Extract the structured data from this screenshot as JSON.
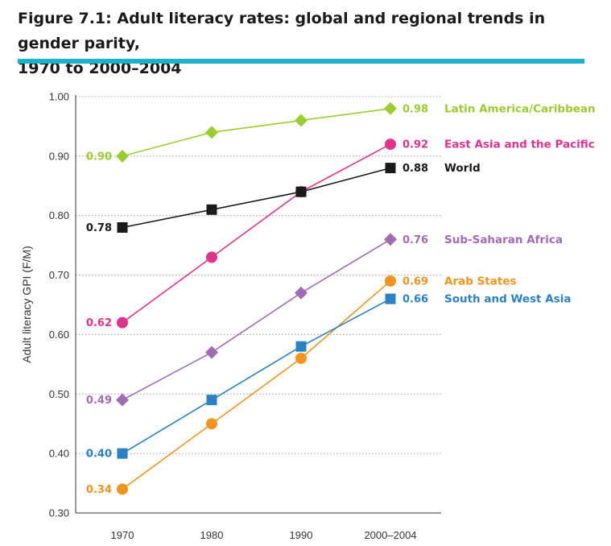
{
  "title_line1": "Figure 7.1: Adult literacy rates: global and regional trends in gender parity,",
  "title_line2": "1970 to 2000–2004",
  "chart_data": {
    "type": "line",
    "title": "Figure 7.1: Adult literacy rates: global and regional trends in gender parity, 1970 to 2000–2004",
    "xlabel": "",
    "ylabel": "Adult literacy GPI (F/M)",
    "categories": [
      "1970",
      "1980",
      "1990",
      "2000–2004"
    ],
    "ylim": [
      0.3,
      1.0
    ],
    "yticks": [
      "0.30",
      "0.40",
      "0.50",
      "0.60",
      "0.70",
      "0.80",
      "0.90",
      "1.00"
    ],
    "grid": "horizontal dotted",
    "series": [
      {
        "name": "Latin America/Caribbean",
        "color": "#9acd32",
        "marker": "diamond",
        "values": [
          0.9,
          0.94,
          0.96,
          0.98
        ],
        "start_label": "0.90",
        "end_label": "0.98"
      },
      {
        "name": "East Asia and the Pacific",
        "color": "#e0338e",
        "marker": "circle",
        "values": [
          0.62,
          0.73,
          0.84,
          0.92
        ],
        "start_label": "0.62",
        "end_label": "0.92"
      },
      {
        "name": "World",
        "color": "#1a1a1a",
        "marker": "square",
        "values": [
          0.78,
          0.81,
          0.84,
          0.88
        ],
        "start_label": "0.78",
        "end_label": "0.88"
      },
      {
        "name": "Sub-Saharan Africa",
        "color": "#a36bb4",
        "marker": "diamond",
        "values": [
          0.49,
          0.57,
          0.67,
          0.76
        ],
        "start_label": "0.49",
        "end_label": "0.76"
      },
      {
        "name": "Arab States",
        "color": "#f39420",
        "marker": "circle",
        "values": [
          0.34,
          0.45,
          0.56,
          0.69
        ],
        "start_label": "0.34",
        "end_label": "0.69"
      },
      {
        "name": "South and West Asia",
        "color": "#2a81c3",
        "marker": "square",
        "values": [
          0.4,
          0.49,
          0.58,
          0.66
        ],
        "start_label": "0.40",
        "end_label": "0.66"
      }
    ]
  }
}
